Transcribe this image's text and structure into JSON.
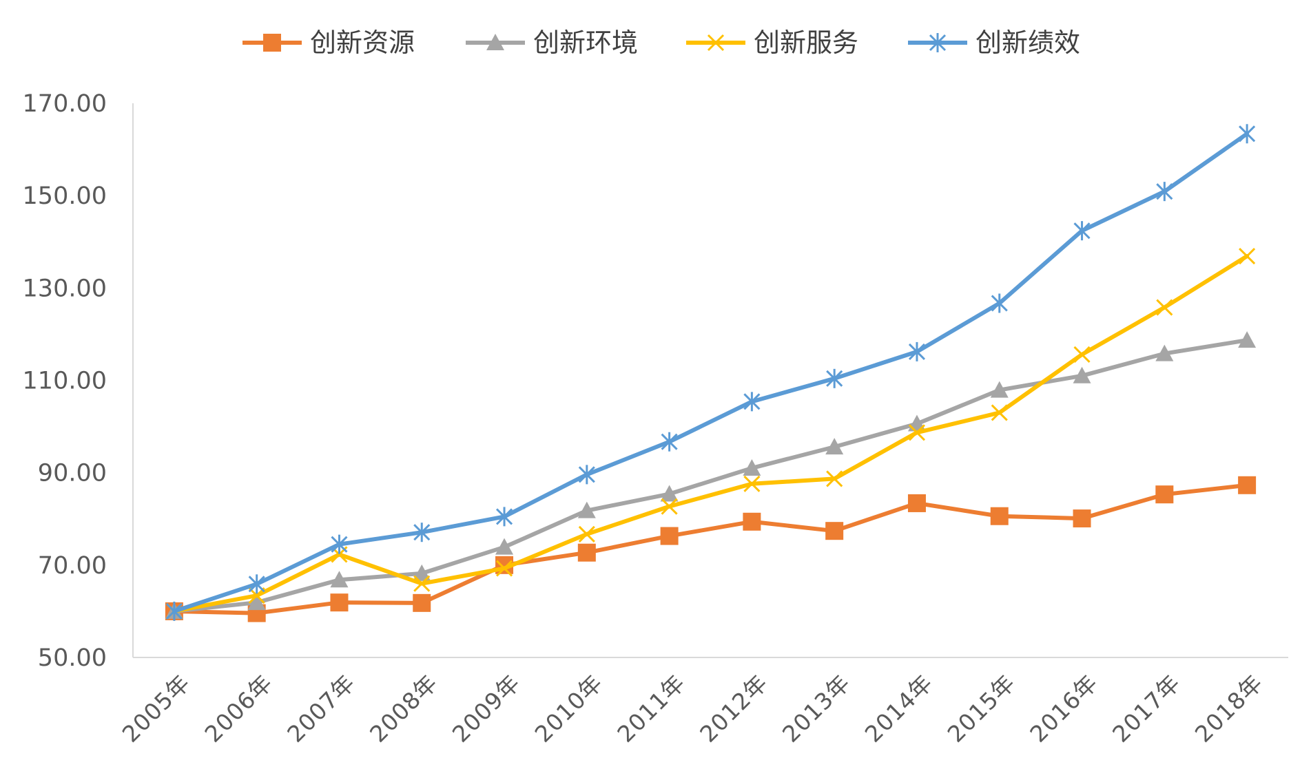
{
  "chart_data": {
    "type": "line",
    "title": "",
    "xlabel": "",
    "ylabel": "",
    "ylim": [
      50,
      170
    ],
    "yticks": [
      "50.00",
      "70.00",
      "90.00",
      "110.00",
      "130.00",
      "150.00",
      "170.00"
    ],
    "grid": false,
    "legend_position": "top",
    "categories": [
      "2005年",
      "2006年",
      "2007年",
      "2008年",
      "2009年",
      "2010年",
      "2011年",
      "2012年",
      "2013年",
      "2014年",
      "2015年",
      "2016年",
      "2017年",
      "2018年"
    ],
    "series": [
      {
        "name": "创新资源",
        "color": "#ED7D31",
        "marker": "square",
        "values": [
          60.0,
          59.6,
          61.9,
          61.8,
          70.0,
          72.7,
          76.3,
          79.4,
          77.4,
          83.4,
          80.6,
          80.1,
          85.3,
          87.3
        ]
      },
      {
        "name": "创新环境",
        "color": "#A5A5A5",
        "marker": "triangle",
        "values": [
          60.0,
          61.9,
          66.8,
          68.2,
          73.9,
          81.8,
          85.4,
          91.0,
          95.6,
          100.6,
          107.9,
          111.0,
          115.8,
          118.7
        ]
      },
      {
        "name": "创新服务",
        "color": "#FFC000",
        "marker": "x",
        "values": [
          60.0,
          63.4,
          72.3,
          66.0,
          69.3,
          76.7,
          82.7,
          87.6,
          88.7,
          98.7,
          103.0,
          115.6,
          125.8,
          136.9
        ]
      },
      {
        "name": "创新绩效",
        "color": "#5B9BD5",
        "marker": "star",
        "values": [
          60.0,
          65.9,
          74.5,
          77.1,
          80.5,
          89.6,
          96.7,
          105.4,
          110.4,
          116.2,
          126.7,
          142.4,
          150.9,
          163.4
        ]
      }
    ]
  }
}
